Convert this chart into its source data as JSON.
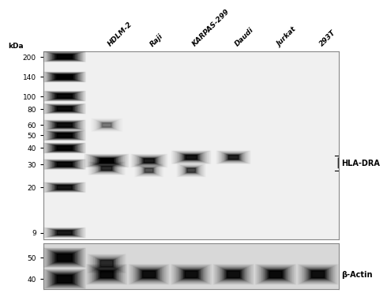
{
  "bg_color": "#f0f0f0",
  "panel_bg": "#f5f5f5",
  "main_panel_bg": "#e8e8e8",
  "cell_lines": [
    "HDLM-2",
    "Raji",
    "KARPAS-299",
    "Daudi",
    "Jurkat",
    "293T"
  ],
  "mw_markers": [
    200,
    140,
    100,
    80,
    60,
    50,
    40,
    30,
    20,
    9
  ],
  "mw_label": "kDa",
  "hla_dra_label": "HLA-DRA",
  "beta_actin_label": "β-Actin",
  "title_fontsize": 7,
  "label_fontsize": 7,
  "tick_fontsize": 6.5
}
